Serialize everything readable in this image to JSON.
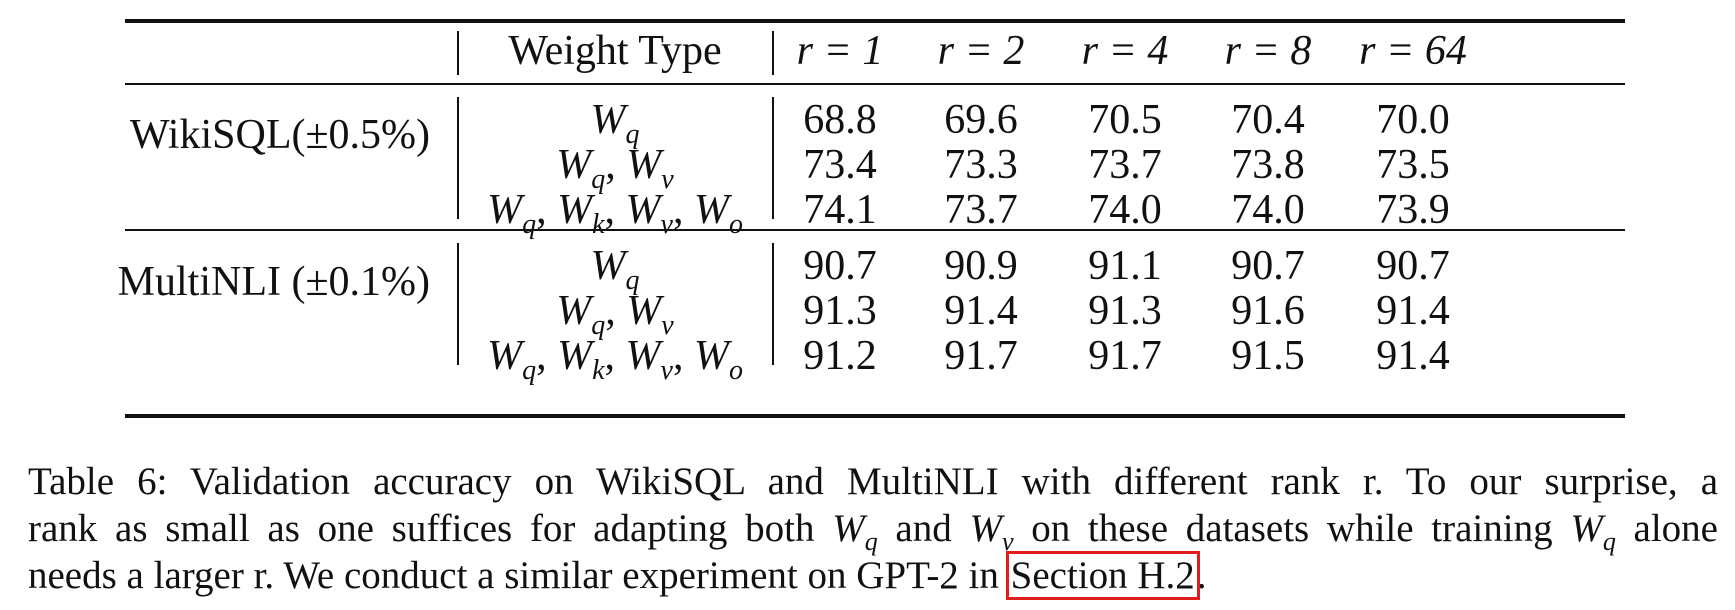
{
  "table": {
    "columns": {
      "weight_type": "Weight Type",
      "ranks": [
        "r = 1",
        "r = 2",
        "r = 4",
        "r = 8",
        "r = 64"
      ]
    },
    "groups": [
      {
        "dataset": "WikiSQL(±0.5%)",
        "rows": [
          {
            "weights": [
              "q"
            ],
            "values": [
              "68.8",
              "69.6",
              "70.5",
              "70.4",
              "70.0"
            ]
          },
          {
            "weights": [
              "q",
              "v"
            ],
            "values": [
              "73.4",
              "73.3",
              "73.7",
              "73.8",
              "73.5"
            ]
          },
          {
            "weights": [
              "q",
              "k",
              "v",
              "o"
            ],
            "values": [
              "74.1",
              "73.7",
              "74.0",
              "74.0",
              "73.9"
            ]
          }
        ]
      },
      {
        "dataset": "MultiNLI (±0.1%)",
        "rows": [
          {
            "weights": [
              "q"
            ],
            "values": [
              "90.7",
              "90.9",
              "91.1",
              "90.7",
              "90.7"
            ]
          },
          {
            "weights": [
              "q",
              "v"
            ],
            "values": [
              "91.3",
              "91.4",
              "91.3",
              "91.6",
              "91.4"
            ]
          },
          {
            "weights": [
              "q",
              "k",
              "v",
              "o"
            ],
            "values": [
              "91.2",
              "91.7",
              "91.7",
              "91.5",
              "91.4"
            ]
          }
        ]
      }
    ]
  },
  "caption": {
    "line1": "Table 6: Validation accuracy on WikiSQL and MultiNLI with different rank r. To our surprise, a",
    "line2_a": "rank as small as one suffices for adapting both ",
    "line2_w1": "W",
    "line2_s1": "q",
    "line2_b": " and ",
    "line2_w2": "W",
    "line2_s2": "v",
    "line2_c": " on these datasets while training ",
    "line2_w3": "W",
    "line2_s3": "q",
    "line2_d": " alone",
    "line3_a": "needs a larger r. We conduct a similar experiment on GPT-2 in ",
    "link": "Section H.2",
    "line3_b": "."
  }
}
